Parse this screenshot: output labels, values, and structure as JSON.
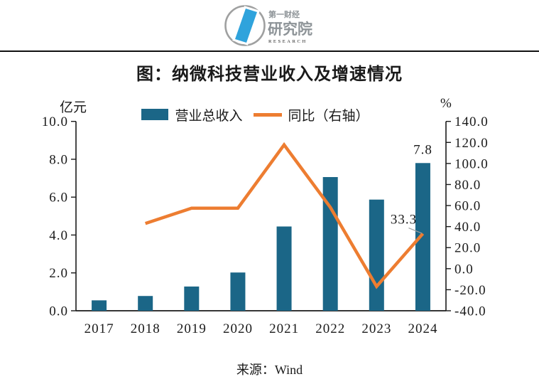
{
  "header": {
    "logo": {
      "brand_cn": "第一财经",
      "org_cn": "研究院",
      "brand_en": "RESEARCH",
      "accent_color": "#2FA3DC",
      "gray_color": "#9FA0A0"
    }
  },
  "chart_data": {
    "type": "bar",
    "title": "图：纳微科技营业收入及增速情况",
    "categories": [
      "2017",
      "2018",
      "2019",
      "2020",
      "2021",
      "2022",
      "2023",
      "2024"
    ],
    "series": [
      {
        "name": "营业总收入",
        "chart_type": "bar",
        "axis": "left",
        "color": "#1B6687",
        "values": [
          0.55,
          0.78,
          1.28,
          2.02,
          4.45,
          7.06,
          5.87,
          7.8
        ]
      },
      {
        "name": "同比（右轴）",
        "chart_type": "line",
        "axis": "right",
        "color": "#ED7D31",
        "values": [
          null,
          43.0,
          57.5,
          57.5,
          117.7,
          58.3,
          -16.9,
          33.3
        ]
      }
    ],
    "left_axis": {
      "unit": "亿元",
      "min": 0,
      "max": 10,
      "ticks": [
        0,
        2,
        4,
        6,
        8,
        10
      ]
    },
    "right_axis": {
      "unit": "%",
      "min": -40,
      "max": 140,
      "ticks": [
        -40,
        -20,
        0,
        20,
        40,
        60,
        80,
        100,
        120,
        140
      ]
    },
    "annotations": [
      {
        "text": "7.8",
        "series": "营业总收入",
        "category": "2024"
      },
      {
        "text": "33.3",
        "series": "同比（右轴）",
        "category": "2024"
      }
    ],
    "legend_position": "top",
    "grid": false
  },
  "footer": {
    "source": "来源：Wind"
  }
}
